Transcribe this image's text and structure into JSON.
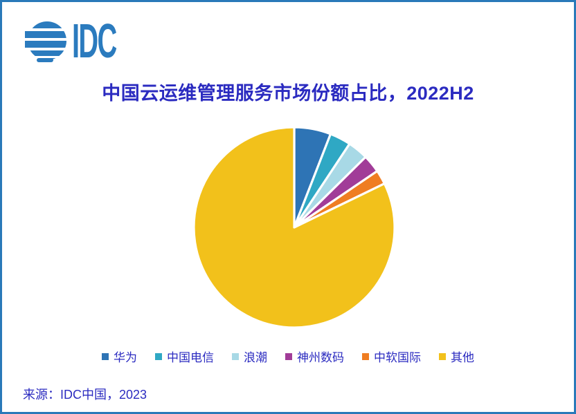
{
  "logo": {
    "text": "IDC",
    "color": "#2B7BBE"
  },
  "chart_data": {
    "type": "pie",
    "title": "中国云运维管理服务市场份额占比，2022H2",
    "categories": [
      "华为",
      "中国电信",
      "浪潮",
      "神州数码",
      "中软国际",
      "其他"
    ],
    "values": [
      5.9,
      3.4,
      3.3,
      2.9,
      2.3,
      82.2
    ],
    "values_note": "percent share, estimated from slice angles (no data labels shown in chart)",
    "colors": [
      "#2E74B5",
      "#2FA8C4",
      "#A8D9E6",
      "#A13C98",
      "#EF7D22",
      "#F2C11B"
    ],
    "start_angle": "12-oclock",
    "direction": "clockwise",
    "slice_gap_color": "#FFFFFF",
    "legend_position": "bottom",
    "data_labels": "none"
  },
  "source": {
    "label": "来源：IDC中国，2023"
  },
  "theme": {
    "background": "#FFFFFF",
    "border_color": "#2979B9",
    "text_color": "#2B2BC0"
  }
}
